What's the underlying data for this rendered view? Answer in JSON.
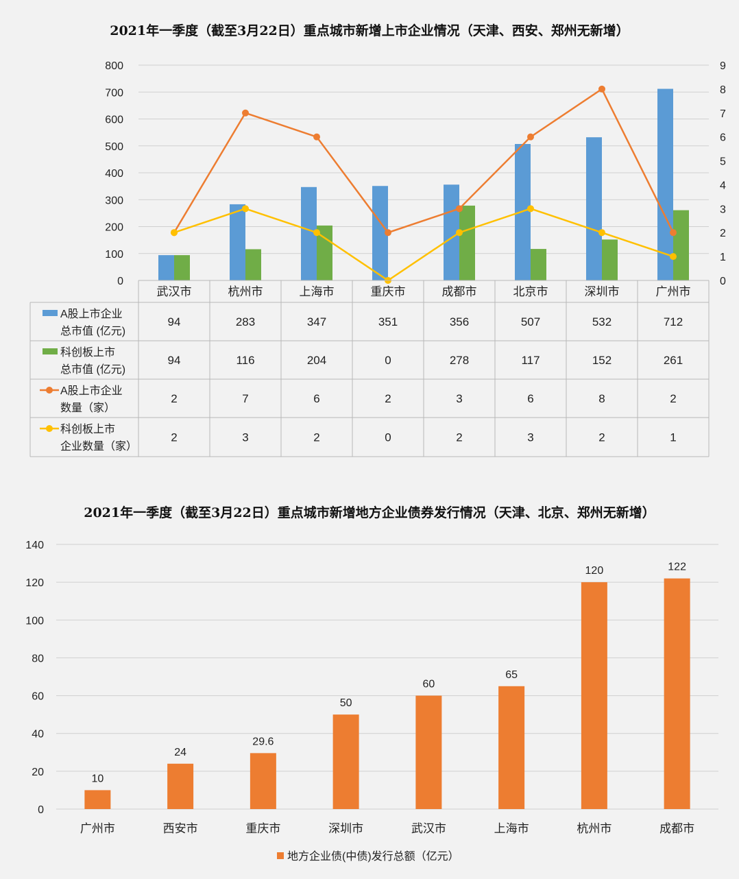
{
  "chart_data": [
    {
      "type": "bar",
      "title": "2021年一季度（截至3月22日）重点城市新增上市企业情况（天津、西安、郑州无新增）",
      "categories": [
        "武汉市",
        "杭州市",
        "上海市",
        "重庆市",
        "成都市",
        "北京市",
        "深圳市",
        "广州市"
      ],
      "ylim": [
        0,
        800
      ],
      "y_ticks": [
        0,
        100,
        200,
        300,
        400,
        500,
        600,
        700,
        800
      ],
      "y2lim": [
        0,
        9
      ],
      "y2_ticks": [
        0,
        1,
        2,
        3,
        4,
        5,
        6,
        7,
        8,
        9
      ],
      "grid": true,
      "legend": "data-table",
      "series": [
        {
          "name_lines": [
            "A股上市企业",
            "总市值 (亿元)"
          ],
          "type": "bar",
          "axis": "left",
          "color": "#5b9bd5",
          "values": [
            94,
            283,
            347,
            351,
            356,
            507,
            532,
            712
          ]
        },
        {
          "name_lines": [
            "科创板上市",
            "总市值 (亿元)"
          ],
          "type": "bar",
          "axis": "left",
          "color": "#70ad47",
          "values": [
            94,
            116,
            204,
            0,
            278,
            117,
            152,
            261
          ]
        },
        {
          "name_lines": [
            "A股上市企业",
            "数量（家）"
          ],
          "type": "line",
          "axis": "right",
          "color": "#ed7d31",
          "values": [
            2,
            7,
            6,
            2,
            3,
            6,
            8,
            2
          ]
        },
        {
          "name_lines": [
            "科创板上市",
            "企业数量（家）"
          ],
          "type": "line",
          "axis": "right",
          "color": "#ffc000",
          "values": [
            2,
            3,
            2,
            0,
            2,
            3,
            2,
            1
          ]
        }
      ]
    },
    {
      "type": "bar",
      "title": "2021年一季度（截至3月22日）重点城市新增地方企业债券发行情况（天津、北京、郑州无新增）",
      "categories": [
        "广州市",
        "西安市",
        "重庆市",
        "深圳市",
        "武汉市",
        "上海市",
        "杭州市",
        "成都市"
      ],
      "ylim": [
        0,
        140
      ],
      "y_ticks": [
        0,
        20,
        40,
        60,
        80,
        100,
        120,
        140
      ],
      "grid": true,
      "legend": "bottom",
      "series": [
        {
          "name": "地方企业债(中债)发行总额（亿元）",
          "color": "#ed7d31",
          "values": [
            10,
            24,
            29.6,
            50,
            60,
            65,
            120,
            122
          ]
        }
      ]
    }
  ]
}
